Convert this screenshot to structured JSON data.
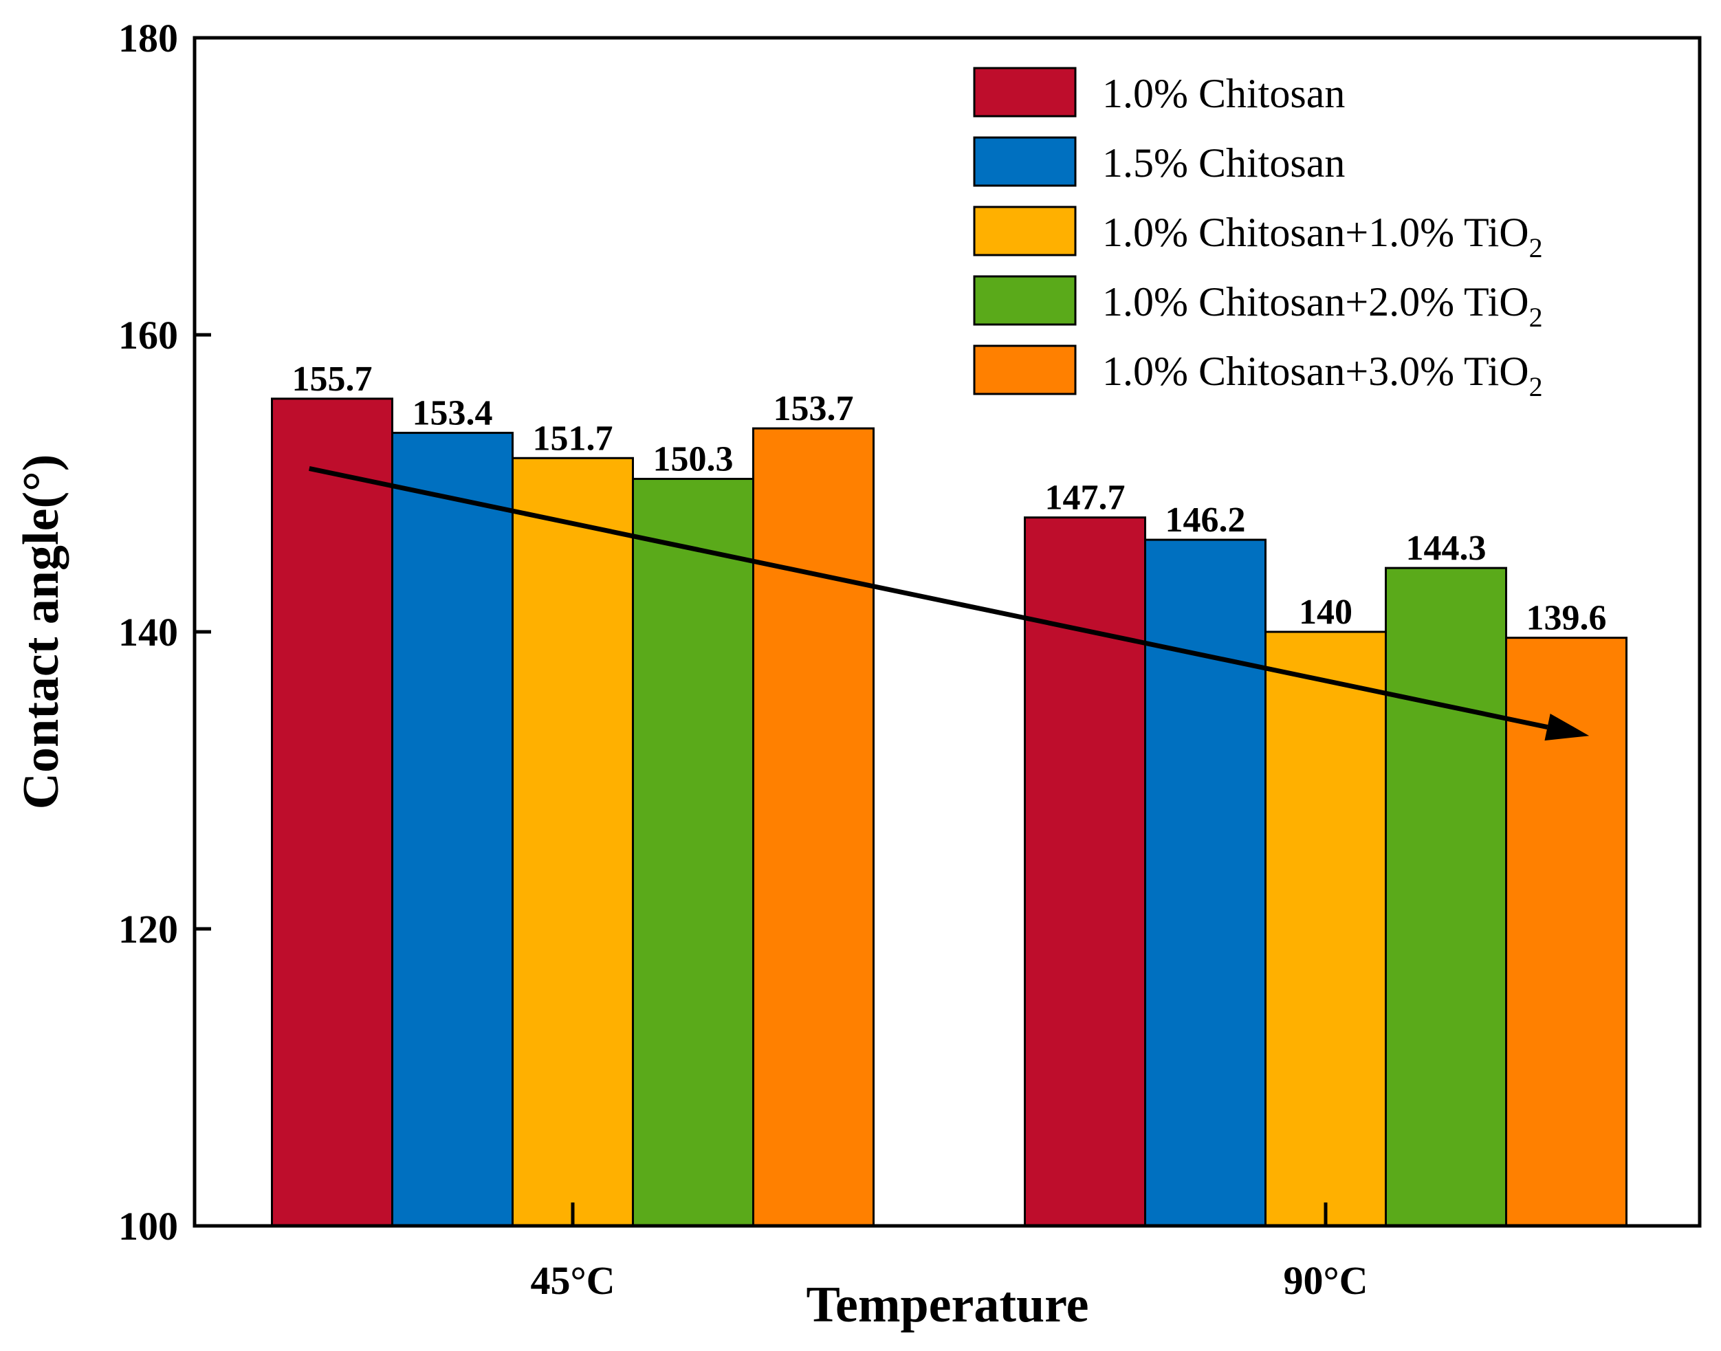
{
  "chart_data": {
    "type": "bar",
    "title": "",
    "xlabel": "Temperature",
    "ylabel": "Contact angle(°)",
    "categories": [
      "45°C",
      "90°C"
    ],
    "ylim": [
      100,
      180
    ],
    "yticks": [
      100,
      120,
      140,
      160,
      180
    ],
    "series": [
      {
        "name": "1.0% Chitosan",
        "name_main": "1.0% Chitosan",
        "name_sub": "",
        "color": "#BE0D2C",
        "values": [
          155.7,
          147.7
        ],
        "labels": [
          "155.7",
          "147.7"
        ]
      },
      {
        "name": "1.5% Chitosan",
        "name_main": "1.5% Chitosan",
        "name_sub": "",
        "color": "#0070C0",
        "values": [
          153.4,
          146.2
        ],
        "labels": [
          "153.4",
          "146.2"
        ]
      },
      {
        "name": "1.0% Chitosan+1.0% TiO2",
        "name_main": "1.0% Chitosan+1.0% TiO",
        "name_sub": "2",
        "color": "#FFB000",
        "values": [
          151.7,
          140.0
        ],
        "labels": [
          "151.7",
          "140"
        ]
      },
      {
        "name": "1.0% Chitosan+2.0% TiO2",
        "name_main": "1.0% Chitosan+2.0% TiO",
        "name_sub": "2",
        "color": "#5AAA1A",
        "values": [
          150.3,
          144.3
        ],
        "labels": [
          "150.3",
          "144.3"
        ]
      },
      {
        "name": "1.0% Chitosan+3.0% TiO2",
        "name_main": "1.0% Chitosan+3.0% TiO",
        "name_sub": "2",
        "color": "#FF8000",
        "values": [
          153.7,
          139.6
        ],
        "labels": [
          "153.7",
          "139.6"
        ]
      }
    ],
    "trend_arrow": {
      "from": [
        -0.35,
        151.0
      ],
      "to": [
        1.35,
        133.0
      ],
      "color": "#000000"
    },
    "legend_position": "top-right"
  }
}
